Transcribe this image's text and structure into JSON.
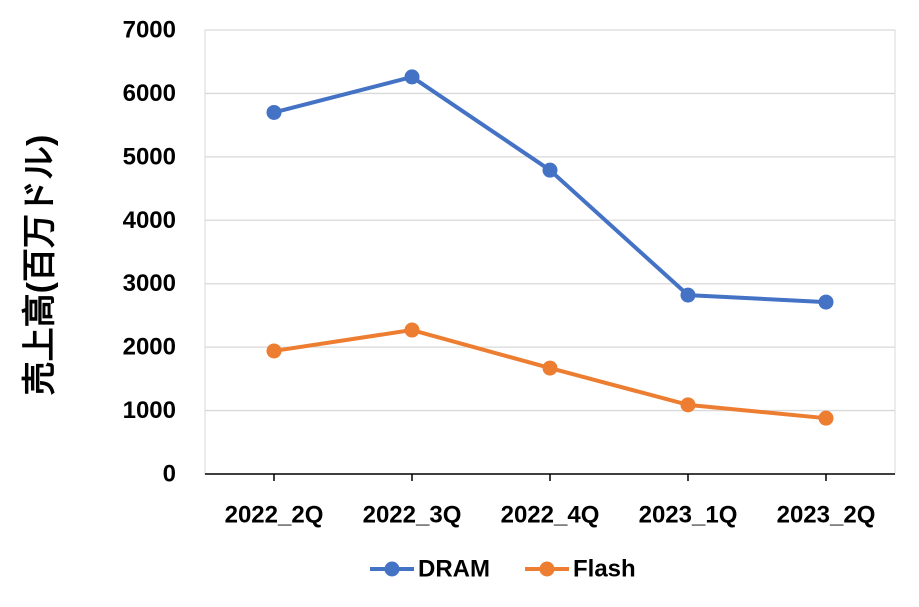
{
  "chart_data": {
    "type": "line",
    "title": "",
    "xlabel": "",
    "ylabel": "売上高(百万ドル)",
    "categories": [
      "2022_2Q",
      "2022_3Q",
      "2022_4Q",
      "2023_1Q",
      "2023_2Q"
    ],
    "series": [
      {
        "name": "DRAM",
        "color": "#4472C4",
        "values": [
          5700,
          6260,
          4790,
          2820,
          2710
        ]
      },
      {
        "name": "Flash",
        "color": "#ED7D31",
        "values": [
          1940,
          2270,
          1670,
          1090,
          880
        ]
      }
    ],
    "ylim": [
      0,
      7000
    ],
    "yticks": [
      0,
      1000,
      2000,
      3000,
      4000,
      5000,
      6000,
      7000
    ],
    "grid": true,
    "legend": "bottom",
    "colors": {
      "grid": "#D9D9D9",
      "axis": "#000000"
    }
  }
}
